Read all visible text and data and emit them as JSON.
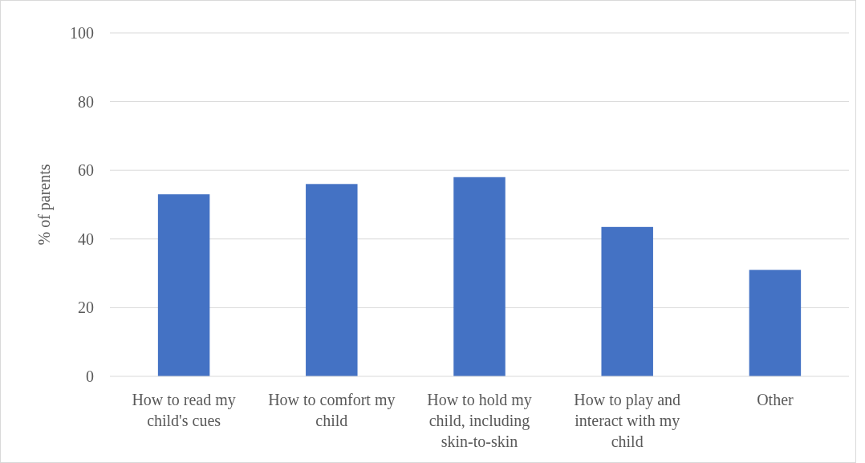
{
  "chart_data": {
    "type": "bar",
    "ylabel": "% of parents",
    "categories": [
      "How to read my child's cues",
      "How to comfort my child",
      "How to hold my child, including skin-to-skin",
      "How to play and interact with my child",
      "Other"
    ],
    "values": [
      53,
      56,
      58,
      43.5,
      31
    ],
    "color": "#4472c4",
    "ylim": [
      0,
      100
    ],
    "yticks": [
      0,
      20,
      40,
      60,
      80,
      100
    ],
    "grid": "y"
  }
}
